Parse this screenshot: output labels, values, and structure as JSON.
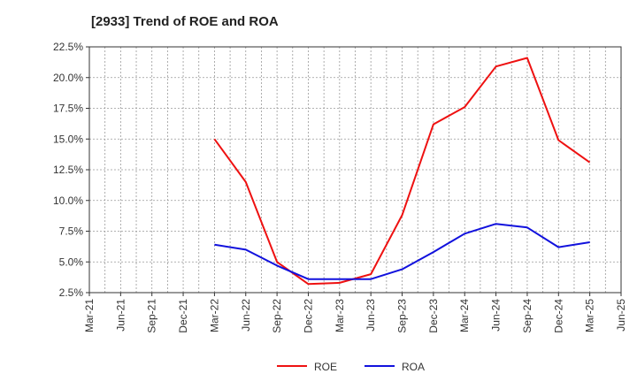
{
  "chart_data": {
    "type": "line",
    "title": "[2933]  Trend of ROE and ROA",
    "xlabel": "",
    "ylabel": "",
    "x_ticks": [
      "Mar-21",
      "Jun-21",
      "Sep-21",
      "Dec-21",
      "Mar-22",
      "Jun-22",
      "Sep-22",
      "Dec-22",
      "Mar-23",
      "Jun-23",
      "Sep-23",
      "Dec-23",
      "Mar-24",
      "Jun-24",
      "Sep-24",
      "Dec-24",
      "Mar-25",
      "Jun-25"
    ],
    "y_ticks": [
      "2.5%",
      "5.0%",
      "7.5%",
      "10.0%",
      "12.5%",
      "15.0%",
      "17.5%",
      "20.0%",
      "22.5%"
    ],
    "ylim": [
      2.5,
      22.5
    ],
    "grid": true,
    "legend_position": "bottom",
    "x": [
      "Mar-22",
      "Jun-22",
      "Sep-22",
      "Dec-22",
      "Mar-23",
      "Jun-23",
      "Sep-23",
      "Dec-23",
      "Mar-24",
      "Jun-24",
      "Sep-24",
      "Dec-24",
      "Mar-25"
    ],
    "series": [
      {
        "name": "ROE",
        "color": "#ee1111",
        "values": [
          15.0,
          11.5,
          5.0,
          3.2,
          3.3,
          4.0,
          8.8,
          16.2,
          17.6,
          20.9,
          21.6,
          14.9,
          13.1
        ]
      },
      {
        "name": "ROA",
        "color": "#1111dd",
        "values": [
          6.4,
          6.0,
          4.7,
          3.6,
          3.6,
          3.6,
          4.4,
          5.8,
          7.3,
          8.1,
          7.8,
          6.2,
          6.6
        ]
      }
    ]
  }
}
